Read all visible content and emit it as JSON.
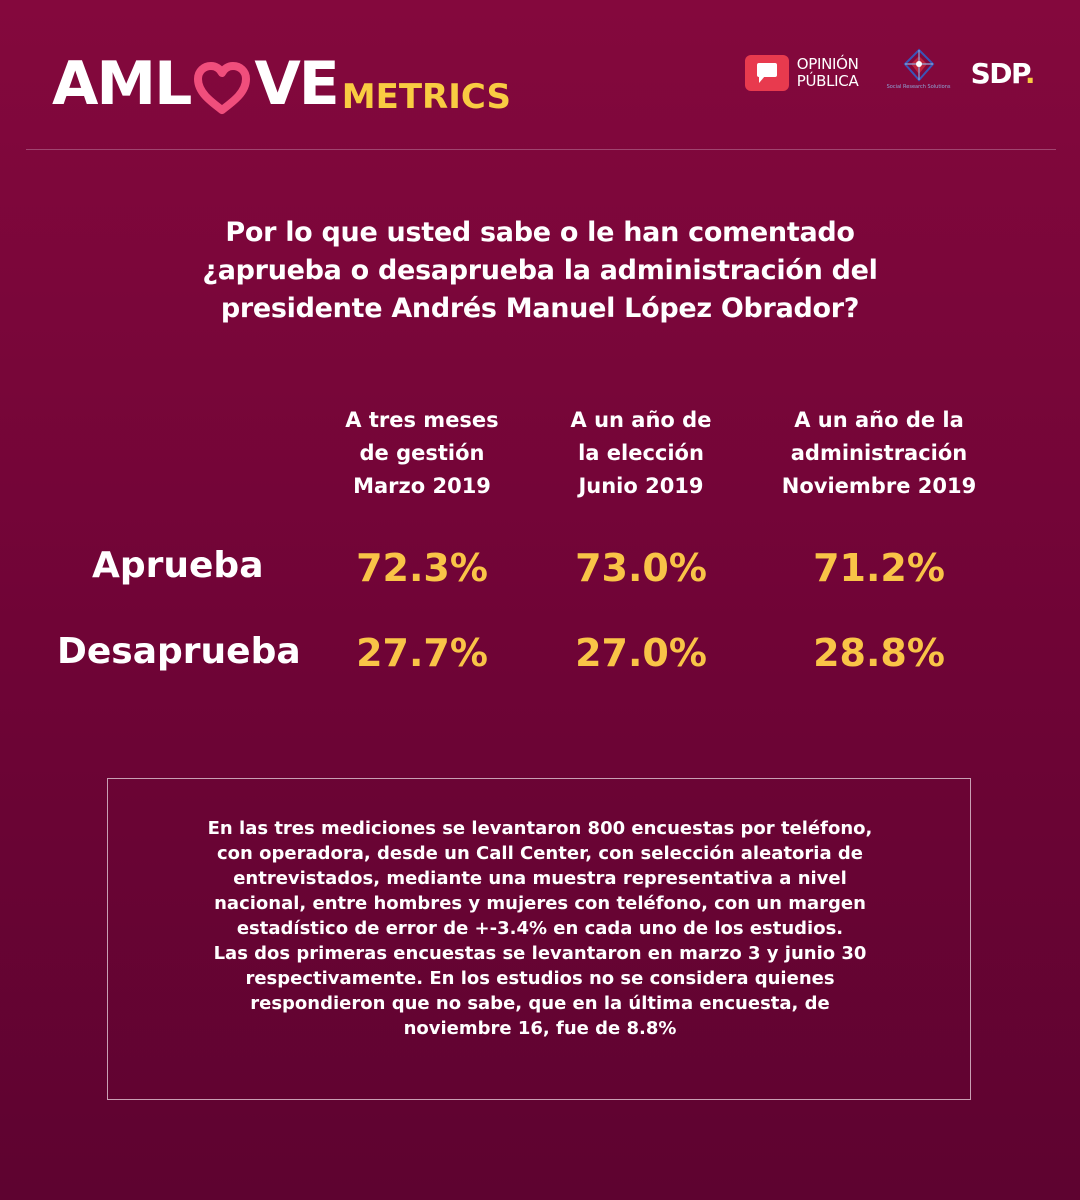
{
  "brand": {
    "logo_left": "AML",
    "logo_right": "VE",
    "logo_sub": "METRICS",
    "partner_opinion_line1": "OPINIÓN",
    "partner_opinion_line2": "PÚBLICA",
    "partner_srs": "Social Research Solutions",
    "partner_sdp": "SDP",
    "partner_sdp_dot": ".",
    "accent_color": "#f9c447",
    "heart_color": "#f04e7c"
  },
  "chart_data": {
    "type": "table",
    "title": "Por lo que usted sabe o le han comentado ¿aprueba o desaprueba la administración del presidente Andrés Manuel López Obrador?",
    "title_lines": [
      "Por lo que usted sabe o le han comentado",
      "¿aprueba o desaprueba la administración del",
      "presidente Andrés Manuel López Obrador?"
    ],
    "columns": [
      {
        "lines": [
          "A tres meses",
          "de gestión",
          "Marzo 2019"
        ]
      },
      {
        "lines": [
          "A un año de",
          "la elección",
          "Junio 2019"
        ]
      },
      {
        "lines": [
          "A un año de la",
          "administración",
          "Noviembre 2019"
        ]
      }
    ],
    "rows": [
      {
        "label": "Aprueba",
        "values": [
          72.3,
          73.0,
          71.2
        ],
        "display": [
          "72.3%",
          "73.0%",
          "71.2%"
        ]
      },
      {
        "label": "Desaprueba",
        "values": [
          27.7,
          27.0,
          28.8
        ],
        "display": [
          "27.7%",
          "27.0%",
          "28.8%"
        ]
      }
    ]
  },
  "note": {
    "lines": [
      "En las tres mediciones se levantaron 800 encuestas por teléfono,",
      "con operadora, desde un Call Center, con selección aleatoria de",
      "entrevistados, mediante una muestra representativa a nivel",
      "nacional, entre hombres y mujeres con teléfono, con un margen",
      "estadístico de error de +-3.4% en cada uno de los estudios.",
      "Las dos primeras encuestas se levantaron en marzo 3 y junio 30",
      "respectivamente. En los estudios no se considera quienes",
      "respondieron que no sabe, que en la última encuesta, de",
      "noviembre 16, fue de 8.8%"
    ]
  }
}
